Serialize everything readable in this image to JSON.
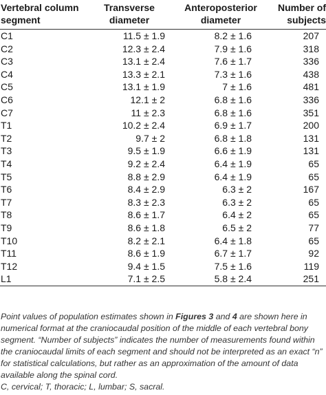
{
  "table": {
    "headers": {
      "segment": [
        "Vertebral column",
        "segment"
      ],
      "transverse": [
        "Transverse",
        "diameter"
      ],
      "anteroposterior": [
        "Anteroposterior",
        "diameter"
      ],
      "subjects": [
        "Number of",
        "subjects"
      ]
    },
    "rows": [
      {
        "segment": "C1",
        "transverse": "11.5 ± 1.9",
        "anteroposterior": "8.2 ± 1.6",
        "subjects": "207"
      },
      {
        "segment": "C2",
        "transverse": "12.3 ± 2.4",
        "anteroposterior": "7.9 ± 1.6",
        "subjects": "318"
      },
      {
        "segment": "C3",
        "transverse": "13.1 ± 2.4",
        "anteroposterior": "7.6 ± 1.7",
        "subjects": "336"
      },
      {
        "segment": "C4",
        "transverse": "13.3 ± 2.1",
        "anteroposterior": "7.3 ± 1.6",
        "subjects": "438"
      },
      {
        "segment": "C5",
        "transverse": "13.1 ± 1.9",
        "anteroposterior": "7 ± 1.6",
        "subjects": "481"
      },
      {
        "segment": "C6",
        "transverse": "12.1 ± 2",
        "anteroposterior": "6.8 ± 1.6",
        "subjects": "336"
      },
      {
        "segment": "C7",
        "transverse": "11 ± 2.3",
        "anteroposterior": "6.8 ± 1.6",
        "subjects": "351"
      },
      {
        "segment": "T1",
        "transverse": "10.2 ± 2.4",
        "anteroposterior": "6.9 ± 1.7",
        "subjects": "200"
      },
      {
        "segment": "T2",
        "transverse": "9.7 ± 2",
        "anteroposterior": "6.8 ± 1.8",
        "subjects": "131"
      },
      {
        "segment": "T3",
        "transverse": "9.5 ± 1.9",
        "anteroposterior": "6.6 ± 1.9",
        "subjects": "131"
      },
      {
        "segment": "T4",
        "transverse": "9.2 ± 2.4",
        "anteroposterior": "6.4 ± 1.9",
        "subjects": "65"
      },
      {
        "segment": "T5",
        "transverse": "8.8 ± 2.9",
        "anteroposterior": "6.4 ± 1.9",
        "subjects": "65"
      },
      {
        "segment": "T6",
        "transverse": "8.4 ± 2.9",
        "anteroposterior": "6.3 ± 2",
        "subjects": "167"
      },
      {
        "segment": "T7",
        "transverse": "8.3 ± 2.3",
        "anteroposterior": "6.3 ± 2",
        "subjects": "65"
      },
      {
        "segment": "T8",
        "transverse": "8.6 ± 1.7",
        "anteroposterior": "6.4 ± 2",
        "subjects": "65"
      },
      {
        "segment": "T9",
        "transverse": "8.6 ± 1.8",
        "anteroposterior": "6.5 ± 2",
        "subjects": "77"
      },
      {
        "segment": "T10",
        "transverse": "8.2 ± 2.1",
        "anteroposterior": "6.4 ± 1.8",
        "subjects": "65"
      },
      {
        "segment": "T11",
        "transverse": "8.6 ± 1.9",
        "anteroposterior": "6.7 ± 1.7",
        "subjects": "92"
      },
      {
        "segment": "T12",
        "transverse": "9.4 ± 1.5",
        "anteroposterior": "7.5 ± 1.6",
        "subjects": "119"
      },
      {
        "segment": "L1",
        "transverse": "7.1 ± 2.5",
        "anteroposterior": "5.8 ± 2.4",
        "subjects": "251"
      }
    ]
  },
  "footnote": {
    "text_1": "Point values of population estimates shown in ",
    "figure_a": "Figures 3",
    "text_2": " and ",
    "figure_b": "4",
    "text_3": " are shown here in numerical format at the craniocaudal position of the middle of each vertebral bony segment. “Number of subjects” indicates the number of measurements found within the craniocaudal limits of each segment and should not be interpreted as an exact “n” for statistical calculations, but rather as an approximation of the amount of data available along the spinal cord.",
    "abbreviations": "C, cervical; T, thoracic; L, lumbar; S, sacral."
  }
}
